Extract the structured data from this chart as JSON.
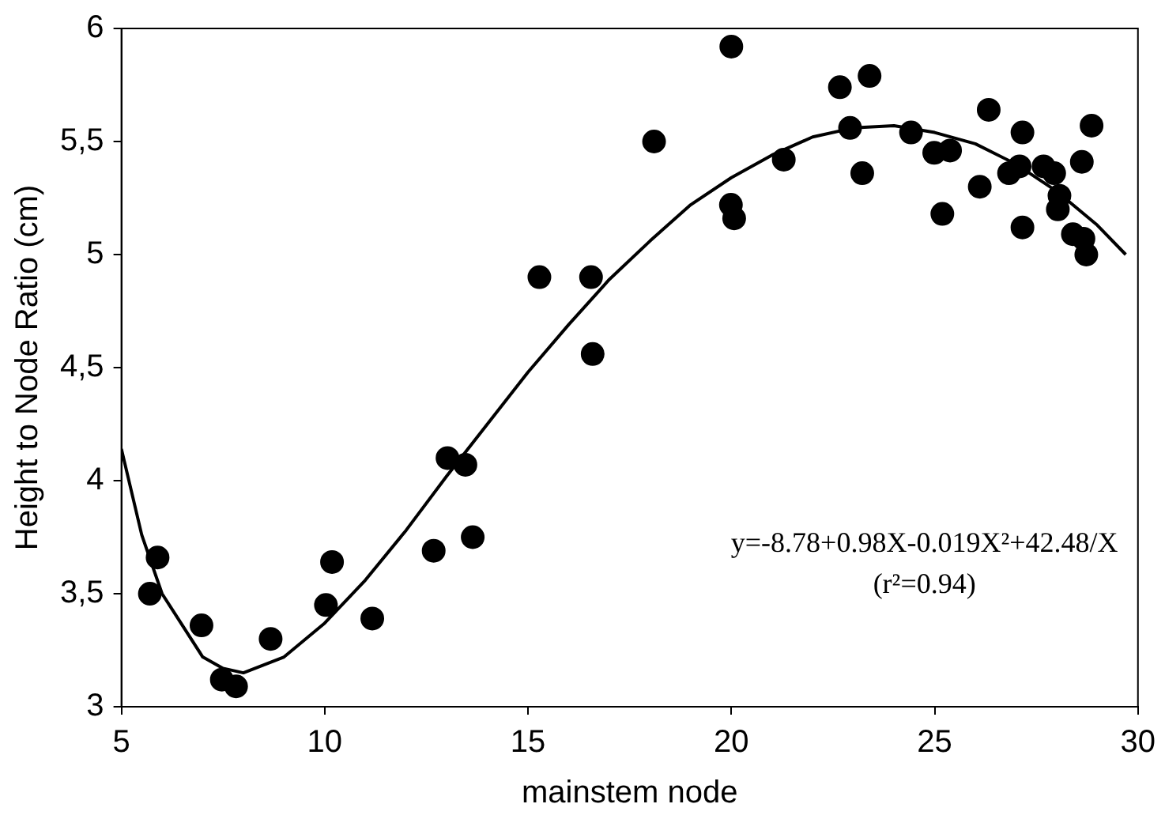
{
  "chart_data": {
    "type": "scatter",
    "xlabel": "mainstem node",
    "ylabel": "Height to Node Ratio (cm)",
    "xlim": [
      5,
      30
    ],
    "xticks": [
      5,
      10,
      15,
      20,
      25,
      30
    ],
    "ylim": [
      3,
      6
    ],
    "yticks": [
      3,
      {
        "value": 3.5,
        "label": "3,5"
      },
      4,
      {
        "value": 4.5,
        "label": "4,5"
      },
      5,
      {
        "value": 5.5,
        "label": "5,5"
      },
      6
    ],
    "grid": false,
    "legend": false,
    "marker": "circle",
    "annotations": [
      "y=-8.78+0.98X-0.019X²+42.48/X",
      "(r²=0.94)"
    ],
    "series": [
      {
        "color": "#000000",
        "x": [
          5.7,
          5.89,
          6.97,
          7.47,
          7.82,
          8.67,
          10.03,
          10.18,
          11.17,
          12.68,
          13.02,
          13.46,
          13.64,
          15.28,
          16.55,
          16.59,
          18.1,
          20.0,
          19.99,
          20.07,
          21.29,
          22.67,
          23.4,
          22.92,
          23.22,
          24.42,
          24.99,
          25.38,
          25.19,
          26.33,
          26.11,
          27.16,
          27.09,
          26.83,
          27.16,
          27.68,
          27.94,
          28.07,
          28.03,
          28.62,
          28.86,
          28.4,
          28.66,
          28.73
        ],
        "values": [
          3.5,
          3.66,
          3.36,
          3.12,
          3.09,
          3.3,
          3.45,
          3.64,
          3.39,
          3.69,
          4.1,
          4.07,
          3.75,
          4.9,
          4.9,
          4.56,
          5.5,
          5.92,
          5.22,
          5.16,
          5.42,
          5.74,
          5.79,
          5.56,
          5.36,
          5.54,
          5.45,
          5.46,
          5.18,
          5.64,
          5.3,
          5.54,
          5.39,
          5.36,
          5.12,
          5.39,
          5.36,
          5.26,
          5.2,
          5.41,
          5.57,
          5.09,
          5.07,
          5.0
        ]
      },
      {
        "type": "line",
        "color": "#000000",
        "line_style": "solid",
        "marker": "none",
        "x": [
          5,
          5.5,
          6,
          7,
          7.5,
          8,
          9,
          10,
          11,
          12,
          13,
          14,
          15,
          16,
          17,
          18,
          19,
          20,
          21,
          22,
          23,
          24,
          25,
          26,
          27,
          28,
          29,
          29.7
        ],
        "values": [
          4.14,
          3.76,
          3.5,
          3.22,
          3.17,
          3.15,
          3.22,
          3.37,
          3.56,
          3.78,
          4.02,
          4.25,
          4.48,
          4.69,
          4.89,
          5.06,
          5.22,
          5.34,
          5.44,
          5.52,
          5.56,
          5.57,
          5.54,
          5.49,
          5.4,
          5.28,
          5.13,
          5.0
        ]
      }
    ]
  }
}
